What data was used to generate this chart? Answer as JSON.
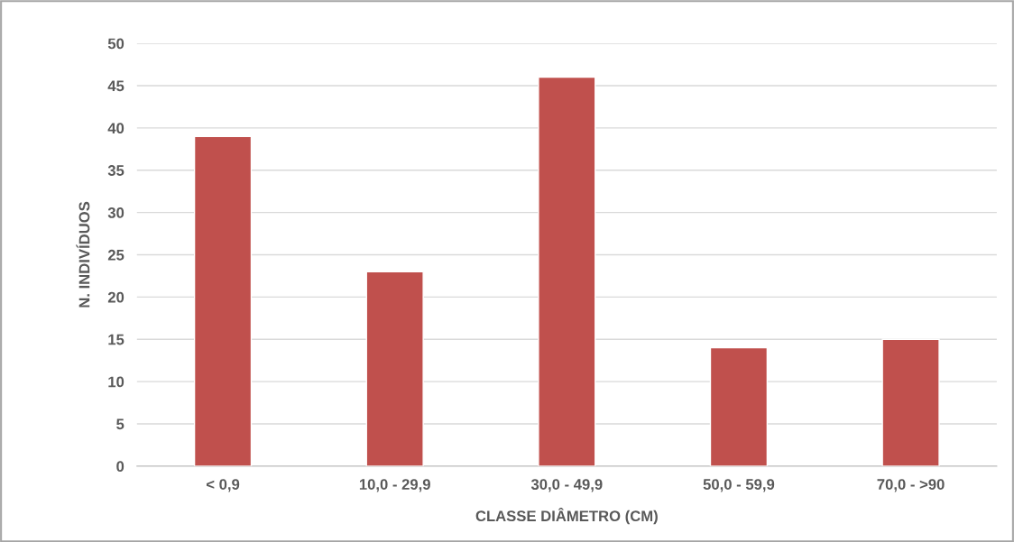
{
  "chart_data": {
    "type": "bar",
    "xlabel": "CLASSE DIÂMETRO (CM)",
    "ylabel": "N. INDIVÍDUOS",
    "categories": [
      "< 0,9",
      "10,0 - 29,9",
      "30,0 - 49,9",
      "50,0 - 59,9",
      "70,0 - >90"
    ],
    "values": [
      39,
      23,
      46,
      14,
      15
    ],
    "color": "#c0504d",
    "ylim": [
      0,
      50
    ],
    "yticks": [
      0,
      5,
      10,
      15,
      20,
      25,
      30,
      35,
      40,
      45,
      50
    ],
    "grid": "y",
    "legend": false
  }
}
